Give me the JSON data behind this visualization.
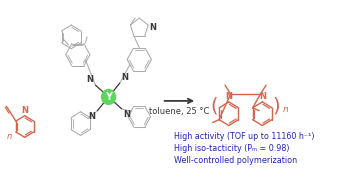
{
  "bg_color": "#ffffff",
  "monomer_color": "#d4654a",
  "catalyst_color": "#3a3a3a",
  "ligand_color": "#aaaaaa",
  "green_color": "#5cd65c",
  "arrow_color": "#3a3a3a",
  "blue_text_color": "#2222bb",
  "condition_text": "toluene, 25 °C",
  "line1": "High activity (TOF up to 11160 h⁻¹)",
  "line2": "High iso-tacticity (Pₘ = 0.98)",
  "line3": "Well-controlled polymerization",
  "text_fontsize": 5.8,
  "condition_fontsize": 6.0,
  "catalyst_label": "Y",
  "N_label": "N",
  "n_label": "n",
  "figw": 3.4,
  "figh": 1.89,
  "dpi": 100
}
